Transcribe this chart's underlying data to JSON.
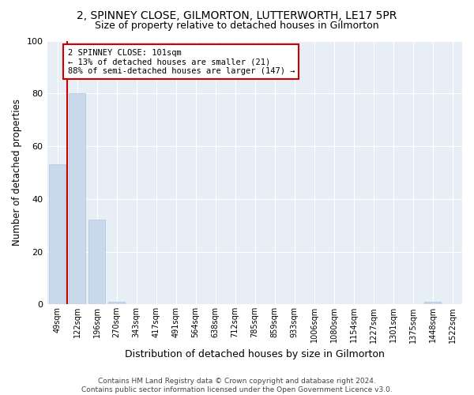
{
  "title": "2, SPINNEY CLOSE, GILMORTON, LUTTERWORTH, LE17 5PR",
  "subtitle": "Size of property relative to detached houses in Gilmorton",
  "xlabel": "Distribution of detached houses by size in Gilmorton",
  "ylabel": "Number of detached properties",
  "categories": [
    "49sqm",
    "122sqm",
    "196sqm",
    "270sqm",
    "343sqm",
    "417sqm",
    "491sqm",
    "564sqm",
    "638sqm",
    "712sqm",
    "785sqm",
    "859sqm",
    "933sqm",
    "1006sqm",
    "1080sqm",
    "1154sqm",
    "1227sqm",
    "1301sqm",
    "1375sqm",
    "1448sqm",
    "1522sqm"
  ],
  "values": [
    53,
    80,
    32,
    1,
    0,
    0,
    0,
    0,
    0,
    0,
    0,
    0,
    0,
    0,
    0,
    0,
    0,
    0,
    0,
    1,
    0
  ],
  "bar_color": "#c8d9ec",
  "bar_edge_color": "#aec6de",
  "marker_color": "#cc0000",
  "annotation_text": "2 SPINNEY CLOSE: 101sqm\n← 13% of detached houses are smaller (21)\n88% of semi-detached houses are larger (147) →",
  "annotation_box_color": "#ffffff",
  "annotation_box_edge": "#cc0000",
  "background_color": "#ffffff",
  "plot_bg_color": "#e8eef6",
  "grid_color": "#ffffff",
  "footer": "Contains HM Land Registry data © Crown copyright and database right 2024.\nContains public sector information licensed under the Open Government Licence v3.0.",
  "ylim": [
    0,
    100
  ],
  "title_fontsize": 10,
  "subtitle_fontsize": 9,
  "xlabel_fontsize": 9,
  "ylabel_fontsize": 8.5
}
